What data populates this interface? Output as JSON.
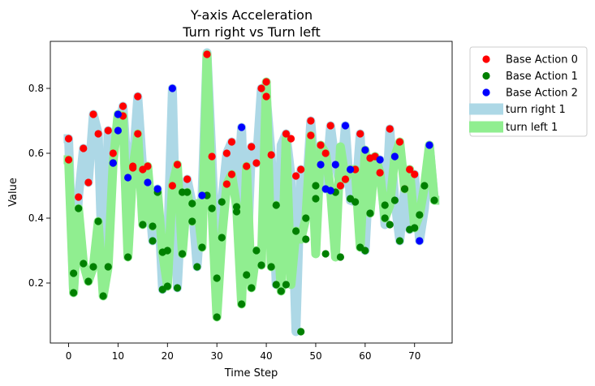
{
  "chart_data": {
    "type": "scatter",
    "title": "Y-axis Acceleration",
    "subtitle": "Turn right vs Turn left",
    "xlabel": "Time Step",
    "ylabel": "Value",
    "xlim": [
      -3.7,
      77.6
    ],
    "ylim": [
      0.015,
      0.945
    ],
    "xticks": [
      0,
      10,
      20,
      30,
      40,
      50,
      60,
      70
    ],
    "yticks": [
      0.2,
      0.4,
      0.6,
      0.8
    ],
    "grid": false,
    "legend_position": "outside-top-right",
    "series": [
      {
        "name": "turn right 1",
        "kind": "band",
        "color": "#add8e6",
        "values": [
          0.645,
          0.17,
          0.465,
          0.615,
          0.51,
          0.72,
          0.66,
          0.16,
          0.67,
          0.6,
          0.67,
          0.745,
          0.525,
          0.56,
          0.775,
          0.55,
          0.51,
          0.33,
          0.49,
          0.18,
          0.3,
          0.8,
          0.185,
          0.48,
          0.52,
          0.445,
          0.25,
          0.47,
          0.91,
          0.59,
          0.215,
          0.45,
          0.6,
          0.635,
          0.42,
          0.68,
          0.225,
          0.62,
          0.57,
          0.8,
          0.775,
          0.595,
          0.195,
          0.625,
          0.66,
          0.53,
          0.05,
          0.55,
          0.46,
          0.7,
          0.5,
          0.565,
          0.49,
          0.685,
          0.565,
          0.5,
          0.685,
          0.455,
          0.45,
          0.66,
          0.3,
          0.585,
          0.58,
          0.58,
          0.38,
          0.675,
          0.455,
          0.33,
          0.495,
          0.365,
          0.535,
          0.33,
          0.43,
          0.625,
          0.455
        ]
      },
      {
        "name": "turn left 1",
        "kind": "band",
        "color": "#90ee90",
        "values": [
          0.58,
          0.17,
          0.43,
          0.26,
          0.205,
          0.25,
          0.39,
          0.16,
          0.25,
          0.57,
          0.72,
          0.715,
          0.28,
          0.555,
          0.66,
          0.38,
          0.56,
          0.375,
          0.48,
          0.295,
          0.19,
          0.5,
          0.565,
          0.29,
          0.48,
          0.39,
          0.445,
          0.31,
          0.905,
          0.43,
          0.095,
          0.34,
          0.505,
          0.535,
          0.435,
          0.135,
          0.56,
          0.185,
          0.3,
          0.255,
          0.82,
          0.25,
          0.44,
          0.175,
          0.645,
          0.195,
          0.36,
          0.335,
          0.4,
          0.655,
          0.29,
          0.625,
          0.6,
          0.485,
          0.28,
          0.62,
          0.52,
          0.55,
          0.55,
          0.31,
          0.61,
          0.415,
          0.59,
          0.54,
          0.4,
          0.44,
          0.59,
          0.635,
          0.49,
          0.55,
          0.37,
          0.41,
          0.5,
          0.625,
          0.455
        ]
      }
    ],
    "points": [
      {
        "name": "Base Action 0",
        "color": "#ff0000",
        "x": [
          0,
          0,
          2,
          3,
          4,
          5,
          6,
          8,
          9,
          11,
          11,
          13,
          13,
          14,
          14,
          15,
          16,
          21,
          22,
          24,
          28,
          29,
          32,
          32,
          33,
          33,
          36,
          37,
          38,
          39,
          40,
          40,
          41,
          44,
          45,
          46,
          47,
          49,
          49,
          51,
          52,
          53,
          55,
          56,
          58,
          59,
          61,
          62,
          63,
          65,
          67,
          68,
          69,
          70
        ],
        "y": [
          0.645,
          0.58,
          0.465,
          0.615,
          0.51,
          0.72,
          0.66,
          0.67,
          0.6,
          0.745,
          0.715,
          0.56,
          0.555,
          0.775,
          0.66,
          0.55,
          0.56,
          0.5,
          0.565,
          0.52,
          0.905,
          0.59,
          0.6,
          0.505,
          0.635,
          0.535,
          0.56,
          0.62,
          0.57,
          0.8,
          0.82,
          0.775,
          0.595,
          0.66,
          0.645,
          0.53,
          0.55,
          0.7,
          0.655,
          0.625,
          0.6,
          0.685,
          0.5,
          0.52,
          0.55,
          0.66,
          0.585,
          0.59,
          0.54,
          0.675,
          0.635,
          0.49,
          0.55,
          0.535
        ]
      },
      {
        "name": "Base Action 1",
        "color": "#008000",
        "x": [
          1,
          1,
          2,
          3,
          4,
          5,
          6,
          7,
          8,
          9,
          12,
          15,
          17,
          17,
          18,
          19,
          19,
          20,
          20,
          22,
          23,
          23,
          24,
          25,
          25,
          26,
          27,
          28,
          29,
          30,
          30,
          31,
          31,
          34,
          34,
          35,
          36,
          37,
          38,
          39,
          41,
          42,
          42,
          43,
          44,
          46,
          47,
          48,
          48,
          50,
          50,
          52,
          54,
          55,
          57,
          58,
          59,
          60,
          61,
          64,
          64,
          65,
          66,
          67,
          68,
          69,
          70,
          71,
          72,
          74
        ],
        "y": [
          0.23,
          0.17,
          0.43,
          0.26,
          0.205,
          0.25,
          0.39,
          0.16,
          0.25,
          0.57,
          0.28,
          0.38,
          0.375,
          0.33,
          0.48,
          0.295,
          0.18,
          0.3,
          0.19,
          0.185,
          0.48,
          0.29,
          0.48,
          0.445,
          0.39,
          0.25,
          0.31,
          0.47,
          0.43,
          0.215,
          0.095,
          0.34,
          0.45,
          0.435,
          0.42,
          0.135,
          0.225,
          0.185,
          0.3,
          0.255,
          0.25,
          0.44,
          0.195,
          0.175,
          0.195,
          0.36,
          0.05,
          0.335,
          0.4,
          0.46,
          0.5,
          0.29,
          0.48,
          0.28,
          0.46,
          0.45,
          0.31,
          0.3,
          0.415,
          0.4,
          0.44,
          0.38,
          0.455,
          0.33,
          0.49,
          0.365,
          0.37,
          0.41,
          0.5,
          0.455
        ]
      },
      {
        "name": "Base Action 2",
        "color": "#0000ff",
        "x": [
          9,
          10,
          10,
          12,
          16,
          18,
          21,
          27,
          35,
          51,
          52,
          53,
          54,
          56,
          57,
          60,
          63,
          66,
          71,
          73
        ],
        "y": [
          0.57,
          0.72,
          0.67,
          0.525,
          0.51,
          0.49,
          0.8,
          0.47,
          0.68,
          0.565,
          0.49,
          0.485,
          0.565,
          0.685,
          0.55,
          0.61,
          0.58,
          0.59,
          0.33,
          0.625
        ]
      }
    ]
  }
}
